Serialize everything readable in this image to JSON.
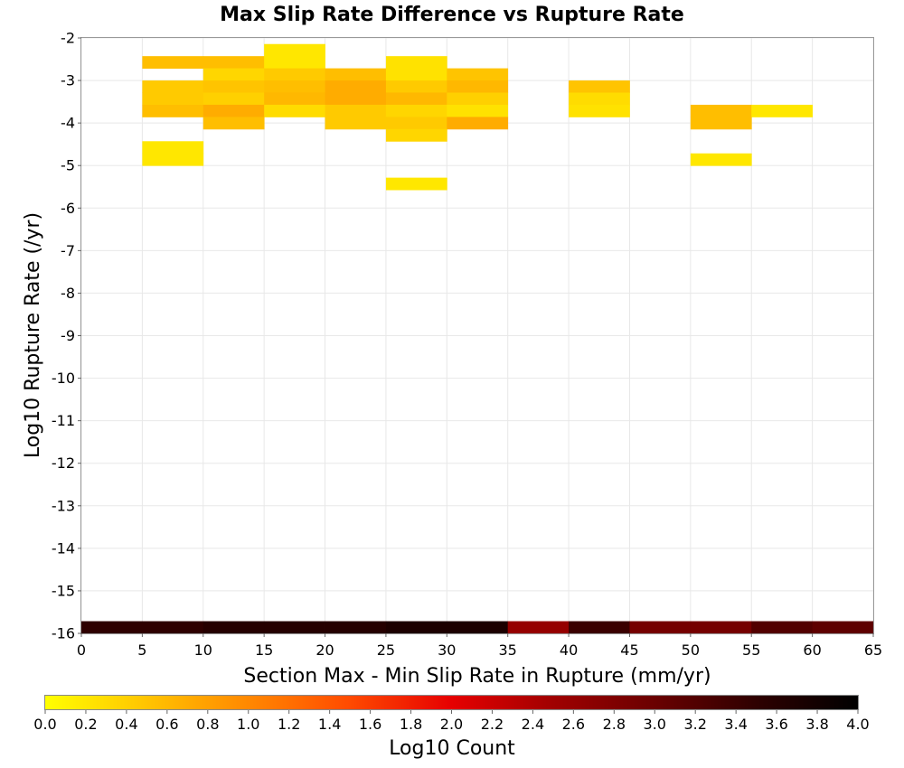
{
  "chart_data": {
    "type": "heatmap",
    "title": "Max Slip Rate Difference vs Rupture Rate",
    "xlabel": "Section Max - Min Slip Rate in Rupture (mm/yr)",
    "ylabel": "Log10 Rupture Rate (/yr)",
    "xlim": [
      0,
      65
    ],
    "ylim": [
      -16,
      -2
    ],
    "x_ticks": [
      "0",
      "5",
      "10",
      "15",
      "20",
      "25",
      "30",
      "35",
      "40",
      "45",
      "50",
      "55",
      "60",
      "65"
    ],
    "y_ticks": [
      "-2",
      "-3",
      "-4",
      "-5",
      "-6",
      "-7",
      "-8",
      "-9",
      "-10",
      "-11",
      "-12",
      "-13",
      "-14",
      "-15",
      "-16"
    ],
    "grid": true,
    "x_bin_width": 5,
    "y_bin_height": 0.286,
    "colorbar": {
      "label": "Log10 Count",
      "min": 0.0,
      "max": 4.0,
      "ticks": [
        "0.0",
        "0.2",
        "0.4",
        "0.6",
        "0.8",
        "1.0",
        "1.2",
        "1.4",
        "1.6",
        "1.8",
        "2.0",
        "2.2",
        "2.4",
        "2.6",
        "2.8",
        "3.0",
        "3.2",
        "3.4",
        "3.6",
        "3.8",
        "4.0"
      ],
      "colors": [
        "#ffff00",
        "#ffc400",
        "#ff8800",
        "#ff4a00",
        "#e60000",
        "#a00000",
        "#6a0000",
        "#2e0000",
        "#000000"
      ]
    },
    "cells": [
      {
        "x": 5,
        "y": -2.714,
        "value": 0.55
      },
      {
        "x": 10,
        "y": -2.714,
        "value": 0.55
      },
      {
        "x": 15,
        "y": -2.429,
        "value": 0.2
      },
      {
        "x": 15,
        "y": -2.714,
        "value": 0.2
      },
      {
        "x": 25,
        "y": -2.714,
        "value": 0.25
      },
      {
        "x": 10,
        "y": -3.0,
        "value": 0.35
      },
      {
        "x": 15,
        "y": -3.0,
        "value": 0.45
      },
      {
        "x": 20,
        "y": -3.0,
        "value": 0.55
      },
      {
        "x": 25,
        "y": -3.0,
        "value": 0.25
      },
      {
        "x": 30,
        "y": -3.0,
        "value": 0.5
      },
      {
        "x": 5,
        "y": -3.286,
        "value": 0.45
      },
      {
        "x": 10,
        "y": -3.286,
        "value": 0.5
      },
      {
        "x": 15,
        "y": -3.286,
        "value": 0.55
      },
      {
        "x": 20,
        "y": -3.286,
        "value": 0.7
      },
      {
        "x": 25,
        "y": -3.286,
        "value": 0.45
      },
      {
        "x": 30,
        "y": -3.286,
        "value": 0.6
      },
      {
        "x": 40,
        "y": -3.286,
        "value": 0.5
      },
      {
        "x": 5,
        "y": -3.571,
        "value": 0.45
      },
      {
        "x": 10,
        "y": -3.571,
        "value": 0.4
      },
      {
        "x": 15,
        "y": -3.571,
        "value": 0.6
      },
      {
        "x": 20,
        "y": -3.571,
        "value": 0.7
      },
      {
        "x": 25,
        "y": -3.571,
        "value": 0.6
      },
      {
        "x": 30,
        "y": -3.571,
        "value": 0.4
      },
      {
        "x": 40,
        "y": -3.571,
        "value": 0.3
      },
      {
        "x": 5,
        "y": -3.857,
        "value": 0.55
      },
      {
        "x": 10,
        "y": -3.857,
        "value": 0.7
      },
      {
        "x": 15,
        "y": -3.857,
        "value": 0.3
      },
      {
        "x": 20,
        "y": -3.857,
        "value": 0.45
      },
      {
        "x": 25,
        "y": -3.857,
        "value": 0.35
      },
      {
        "x": 30,
        "y": -3.857,
        "value": 0.25
      },
      {
        "x": 40,
        "y": -3.857,
        "value": 0.25
      },
      {
        "x": 50,
        "y": -3.857,
        "value": 0.55
      },
      {
        "x": 55,
        "y": -3.857,
        "value": 0.2
      },
      {
        "x": 10,
        "y": -4.143,
        "value": 0.55
      },
      {
        "x": 20,
        "y": -4.143,
        "value": 0.45
      },
      {
        "x": 25,
        "y": -4.143,
        "value": 0.45
      },
      {
        "x": 30,
        "y": -4.143,
        "value": 0.7
      },
      {
        "x": 50,
        "y": -4.143,
        "value": 0.55
      },
      {
        "x": 25,
        "y": -4.429,
        "value": 0.35
      },
      {
        "x": 5,
        "y": -4.714,
        "value": 0.2
      },
      {
        "x": 5,
        "y": -5.0,
        "value": 0.2
      },
      {
        "x": 50,
        "y": -5.0,
        "value": 0.2
      },
      {
        "x": 25,
        "y": -5.571,
        "value": 0.2
      },
      {
        "x": 0,
        "y": -16.0,
        "value": 3.5
      },
      {
        "x": 5,
        "y": -16.0,
        "value": 3.5
      },
      {
        "x": 10,
        "y": -16.0,
        "value": 3.6
      },
      {
        "x": 15,
        "y": -16.0,
        "value": 3.6
      },
      {
        "x": 20,
        "y": -16.0,
        "value": 3.6
      },
      {
        "x": 25,
        "y": -16.0,
        "value": 3.7
      },
      {
        "x": 30,
        "y": -16.0,
        "value": 3.7
      },
      {
        "x": 35,
        "y": -16.0,
        "value": 2.6
      },
      {
        "x": 40,
        "y": -16.0,
        "value": 3.4
      },
      {
        "x": 45,
        "y": -16.0,
        "value": 2.9
      },
      {
        "x": 50,
        "y": -16.0,
        "value": 2.9
      },
      {
        "x": 55,
        "y": -16.0,
        "value": 3.2
      },
      {
        "x": 60,
        "y": -16.0,
        "value": 3.1
      }
    ]
  }
}
